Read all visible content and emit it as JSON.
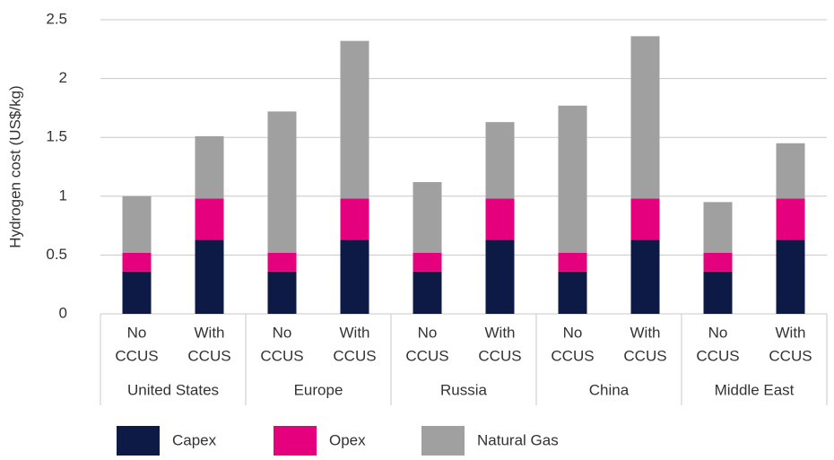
{
  "chart_data": {
    "type": "stacked-bar",
    "y_label": "Hydrogen cost (US$/kg)",
    "categories": [
      [
        "No",
        "CCUS"
      ],
      [
        "With",
        "CCUS"
      ],
      [
        "No",
        "CCUS"
      ],
      [
        "With",
        "CCUS"
      ],
      [
        "No",
        "CCUS"
      ],
      [
        "With",
        "CCUS"
      ],
      [
        "No",
        "CCUS"
      ],
      [
        "With",
        "CCUS"
      ],
      [
        "No",
        "CCUS"
      ],
      [
        "With",
        "CCUS"
      ]
    ],
    "groups": [
      "United States",
      "Europe",
      "Russia",
      "China",
      "Middle East"
    ],
    "series": [
      {
        "name": "Capex",
        "color": "#0c1a45",
        "values": [
          0.36,
          0.63,
          0.36,
          0.63,
          0.36,
          0.63,
          0.36,
          0.63,
          0.36,
          0.63
        ]
      },
      {
        "name": "Opex",
        "color": "#e5007d",
        "values": [
          0.16,
          0.35,
          0.16,
          0.35,
          0.16,
          0.35,
          0.16,
          0.35,
          0.16,
          0.35
        ]
      },
      {
        "name": "Natural Gas",
        "color": "#a0a0a0",
        "values": [
          0.48,
          0.53,
          1.2,
          1.34,
          0.6,
          0.65,
          1.25,
          1.38,
          0.43,
          0.47
        ]
      }
    ],
    "ylim": [
      0,
      2.5
    ],
    "yticks": [
      0,
      0.5,
      1,
      1.5,
      2,
      2.5
    ],
    "grid": true,
    "legend": "bottom"
  }
}
